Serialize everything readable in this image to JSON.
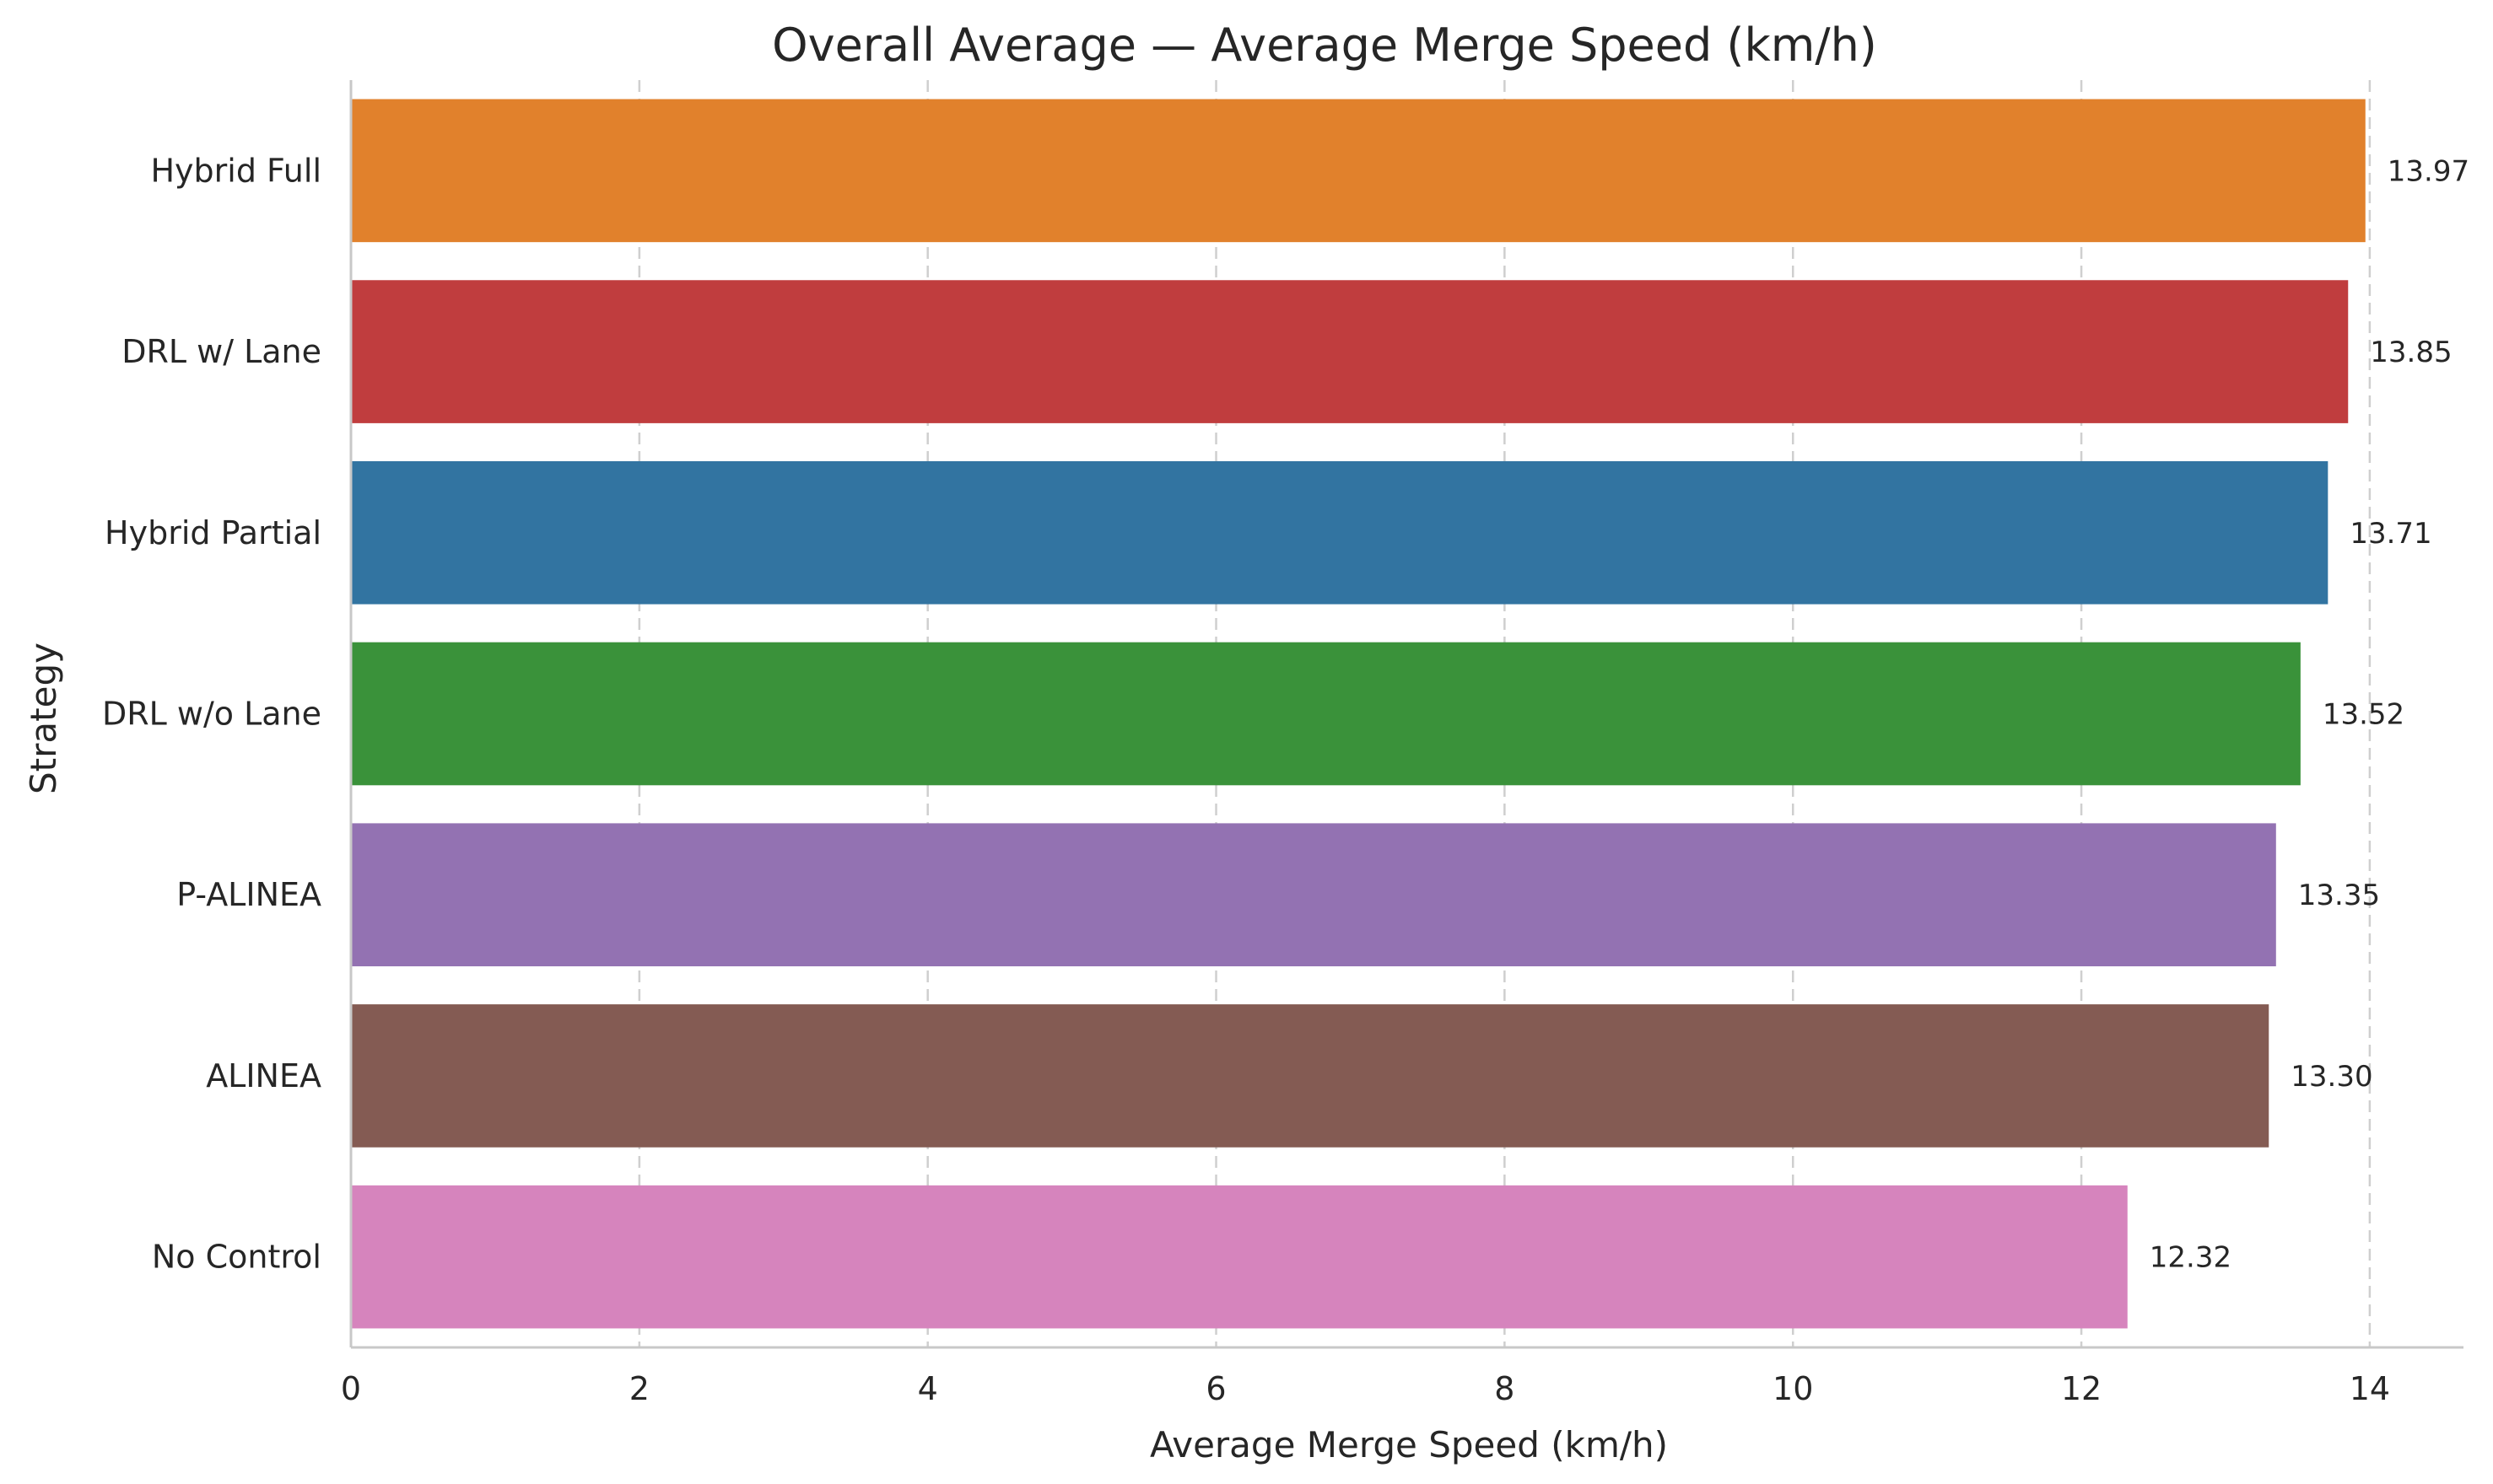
{
  "chart_data": {
    "type": "bar",
    "orientation": "horizontal",
    "title": "Overall Average — Average Merge Speed (km/h)",
    "xlabel": "Average Merge Speed (km/h)",
    "ylabel": "Strategy",
    "xlim": [
      0,
      14.65
    ],
    "xticks": [
      0,
      2,
      4,
      6,
      8,
      10,
      12,
      14
    ],
    "grid": "vertical dashed",
    "categories": [
      "Hybrid Full",
      "DRL w/ Lane",
      "Hybrid Partial",
      "DRL w/o Lane",
      "P-ALINEA",
      "ALINEA",
      "No Control"
    ],
    "values": [
      13.97,
      13.85,
      13.71,
      13.52,
      13.35,
      13.3,
      12.32
    ],
    "value_labels": [
      "13.97",
      "13.85",
      "13.71",
      "13.52",
      "13.35",
      "13.30",
      "12.32"
    ],
    "colors": [
      "#e1812c",
      "#c03d3e",
      "#3274a1",
      "#3a923a",
      "#9372b2",
      "#845b53",
      "#d684bd"
    ]
  }
}
